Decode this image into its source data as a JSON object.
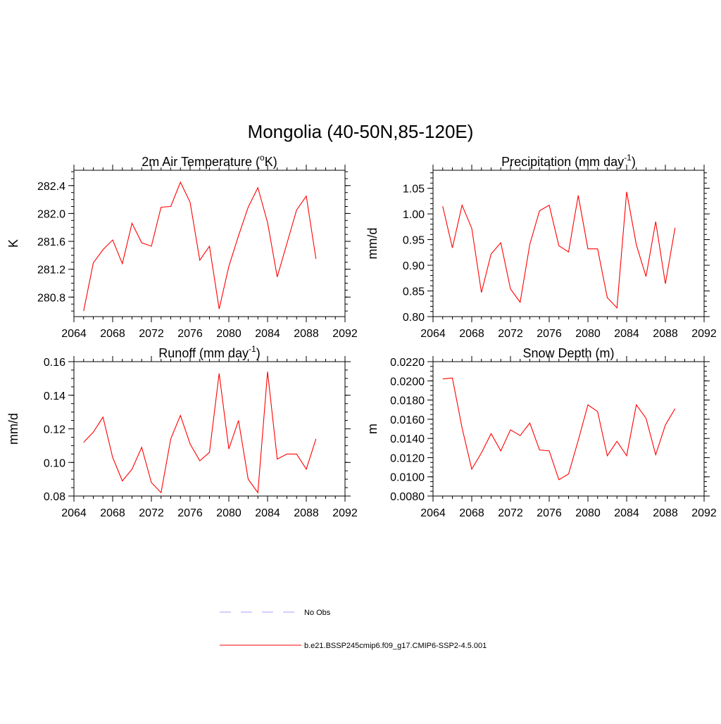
{
  "figure": {
    "title": "Mongolia (40-50N,85-120E)"
  },
  "legend": {
    "items": [
      {
        "label": "No Obs",
        "color": "#a0a0ff",
        "style": "dashed"
      },
      {
        "label": "b.e21.BSSP245cmip6.f09_g17.CMIP6-SSP2-4.5.001",
        "color": "#ff0000",
        "style": "solid"
      }
    ]
  },
  "chart_data": [
    {
      "type": "line",
      "title": "2m Air Temperature (°K)",
      "title_parts": [
        "2m Air Temperature (",
        "o",
        "K)"
      ],
      "ylabel": "K",
      "xlim": [
        2064,
        2092
      ],
      "ylim": [
        280.52,
        282.62
      ],
      "x_ticks": [
        2064,
        2068,
        2072,
        2076,
        2080,
        2084,
        2088,
        2092
      ],
      "y_ticks": [
        280.8,
        281.2,
        281.6,
        282.0,
        282.4
      ],
      "y_tick_labels": [
        "280.8",
        "281.2",
        "281.6",
        "282.0",
        "282.4"
      ],
      "y_minor_step": 0.1,
      "series": [
        {
          "color": "#ff0000",
          "x": [
            2065,
            2066,
            2067,
            2068,
            2069,
            2070,
            2071,
            2072,
            2073,
            2074,
            2075,
            2076,
            2077,
            2078,
            2079,
            2080,
            2081,
            2082,
            2083,
            2084,
            2085,
            2086,
            2087,
            2088,
            2089
          ],
          "y": [
            280.6,
            281.29,
            281.48,
            281.62,
            281.28,
            281.86,
            281.58,
            281.53,
            282.09,
            282.1,
            282.45,
            282.16,
            281.33,
            281.53,
            280.63,
            281.24,
            281.68,
            282.09,
            282.37,
            281.87,
            281.09,
            281.57,
            282.05,
            282.25,
            281.35
          ]
        }
      ]
    },
    {
      "type": "line",
      "title": "Precipitation (mm day-1)",
      "title_parts": [
        "Precipitation (mm day",
        "-1",
        ")"
      ],
      "ylabel": "mm/d",
      "xlim": [
        2064,
        2092
      ],
      "ylim": [
        0.8,
        1.085
      ],
      "x_ticks": [
        2064,
        2068,
        2072,
        2076,
        2080,
        2084,
        2088,
        2092
      ],
      "y_ticks": [
        0.8,
        0.85,
        0.9,
        0.95,
        1.0,
        1.05
      ],
      "y_tick_labels": [
        "0.80",
        "0.85",
        "0.90",
        "0.95",
        "1.00",
        "1.05"
      ],
      "y_minor_step": 0.01,
      "series": [
        {
          "color": "#ff0000",
          "x": [
            2065,
            2066,
            2067,
            2068,
            2069,
            2070,
            2071,
            2072,
            2073,
            2074,
            2075,
            2076,
            2077,
            2078,
            2079,
            2080,
            2081,
            2082,
            2083,
            2084,
            2085,
            2086,
            2087,
            2088,
            2089
          ],
          "y": [
            1.015,
            0.934,
            1.017,
            0.972,
            0.847,
            0.922,
            0.944,
            0.854,
            0.828,
            0.941,
            1.006,
            1.017,
            0.938,
            0.926,
            1.036,
            0.932,
            0.932,
            0.837,
            0.817,
            1.043,
            0.94,
            0.878,
            0.985,
            0.864,
            0.973
          ]
        }
      ]
    },
    {
      "type": "line",
      "title": "Runoff (mm day-1)",
      "title_parts": [
        "Runoff (mm day",
        "-1",
        ")"
      ],
      "ylabel": "mm/d",
      "xlim": [
        2064,
        2092
      ],
      "ylim": [
        0.08,
        0.16
      ],
      "x_ticks": [
        2064,
        2068,
        2072,
        2076,
        2080,
        2084,
        2088,
        2092
      ],
      "y_ticks": [
        0.08,
        0.1,
        0.12,
        0.14,
        0.16
      ],
      "y_tick_labels": [
        "0.08",
        "0.10",
        "0.12",
        "0.14",
        "0.16"
      ],
      "y_minor_step": 0.005,
      "series": [
        {
          "color": "#ff0000",
          "x": [
            2065,
            2066,
            2067,
            2068,
            2069,
            2070,
            2071,
            2072,
            2073,
            2074,
            2075,
            2076,
            2077,
            2078,
            2079,
            2080,
            2081,
            2082,
            2083,
            2084,
            2085,
            2086,
            2087,
            2088,
            2089
          ],
          "y": [
            0.112,
            0.118,
            0.127,
            0.103,
            0.089,
            0.096,
            0.109,
            0.088,
            0.082,
            0.114,
            0.128,
            0.111,
            0.101,
            0.106,
            0.153,
            0.108,
            0.125,
            0.09,
            0.082,
            0.154,
            0.102,
            0.105,
            0.105,
            0.096,
            0.114
          ]
        }
      ]
    },
    {
      "type": "line",
      "title": "Snow Depth (m)",
      "title_parts": [
        "Snow Depth (m)"
      ],
      "ylabel": "m",
      "xlim": [
        2064,
        2092
      ],
      "ylim": [
        0.008,
        0.022
      ],
      "x_ticks": [
        2064,
        2068,
        2072,
        2076,
        2080,
        2084,
        2088,
        2092
      ],
      "y_ticks": [
        0.008,
        0.01,
        0.012,
        0.014,
        0.016,
        0.018,
        0.02,
        0.022
      ],
      "y_tick_labels": [
        "0.0080",
        "0.0100",
        "0.0120",
        "0.0140",
        "0.0160",
        "0.0180",
        "0.0200",
        "0.0220"
      ],
      "y_minor_step": 0.0005,
      "series": [
        {
          "color": "#ff0000",
          "x": [
            2065,
            2066,
            2067,
            2068,
            2069,
            2070,
            2071,
            2072,
            2073,
            2074,
            2075,
            2076,
            2077,
            2078,
            2079,
            2080,
            2081,
            2082,
            2083,
            2084,
            2085,
            2086,
            2087,
            2088,
            2089
          ],
          "y": [
            0.0202,
            0.0203,
            0.0151,
            0.0108,
            0.0125,
            0.0145,
            0.0127,
            0.0149,
            0.0143,
            0.0156,
            0.0128,
            0.0127,
            0.0097,
            0.0103,
            0.0138,
            0.0175,
            0.0168,
            0.0122,
            0.0137,
            0.0122,
            0.0175,
            0.0161,
            0.0123,
            0.0154,
            0.0171
          ]
        }
      ]
    }
  ]
}
